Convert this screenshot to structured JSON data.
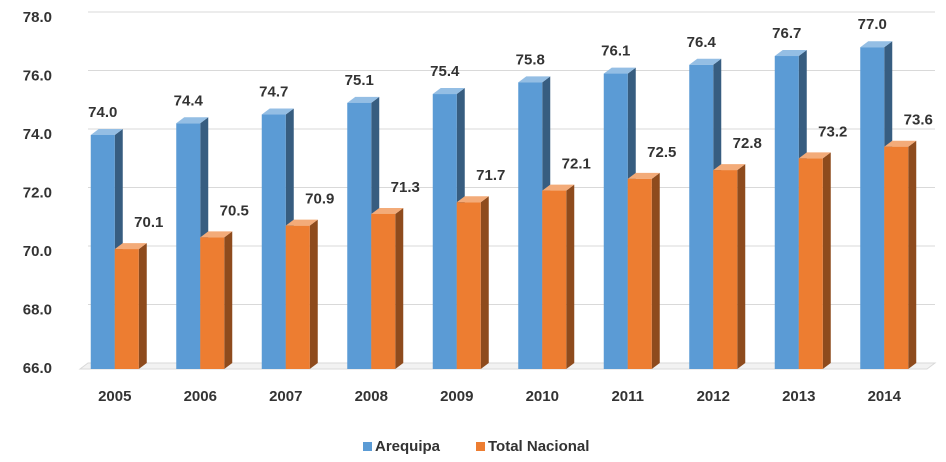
{
  "chart_data": {
    "type": "bar",
    "categories": [
      "2005",
      "2006",
      "2007",
      "2008",
      "2009",
      "2010",
      "2011",
      "2012",
      "2013",
      "2014"
    ],
    "series": [
      {
        "name": "Arequipa",
        "color": "#5b9bd5",
        "values": [
          74.0,
          74.4,
          74.7,
          75.1,
          75.4,
          75.8,
          76.1,
          76.4,
          76.7,
          77.0
        ],
        "value_labels": [
          "74.0",
          "74.4",
          "74.7",
          "75.1",
          "75.4",
          "75.8",
          "76.1",
          "76.4",
          "76.7",
          "77.0"
        ]
      },
      {
        "name": "Total Nacional",
        "color": "#ed7d31",
        "values": [
          70.1,
          70.5,
          70.9,
          71.3,
          71.7,
          72.1,
          72.5,
          72.8,
          73.2,
          73.6
        ],
        "value_labels": [
          "70.1",
          "70.5",
          "70.9",
          "71.3",
          "71.7",
          "72.1",
          "72.5",
          "72.8",
          "73.2",
          "73.6"
        ]
      }
    ],
    "ylim": [
      66,
      78
    ],
    "yticks": [
      {
        "value": 66,
        "label": "66.0"
      },
      {
        "value": 68,
        "label": "68.0"
      },
      {
        "value": 70,
        "label": "70.0"
      },
      {
        "value": 72,
        "label": "72.0"
      },
      {
        "value": 74,
        "label": "74.0"
      },
      {
        "value": 76,
        "label": "76.0"
      },
      {
        "value": 78,
        "label": "78.0"
      }
    ],
    "grid": true,
    "legend": "bottom"
  }
}
